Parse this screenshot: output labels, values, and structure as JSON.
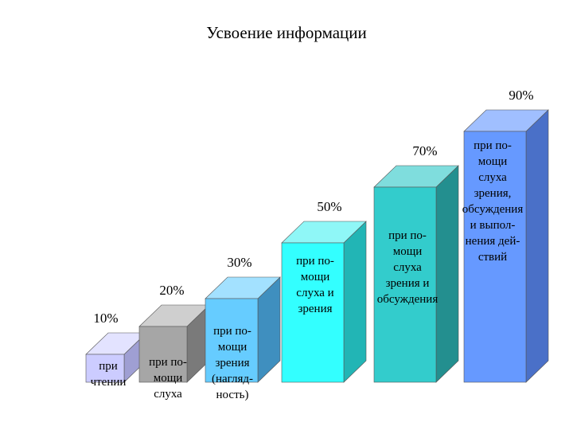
{
  "chart_data": {
    "type": "bar",
    "title": "Усвоение информации",
    "xlabel": "",
    "ylabel": "",
    "ylim": [
      0,
      100
    ],
    "grid": false,
    "legend": "none",
    "style": "3d-columns",
    "categories": [
      "при чтении",
      "при помощи слуха",
      "при помощи зрения (наглядность)",
      "при помощи слуха и зрения",
      "при помощи слуха зрения и обсуждения",
      "при помощи слуха зрения, обсуждения и выполнения действий"
    ],
    "values": [
      10,
      20,
      30,
      50,
      70,
      90
    ],
    "value_labels": [
      "10%",
      "20%",
      "30%",
      "50%",
      "70%",
      "90%"
    ],
    "bar_text_lines": [
      [
        "при",
        "чтении"
      ],
      [
        "при по-",
        "мощи",
        "слуха"
      ],
      [
        "при по-",
        "мощи",
        "зрения",
        "(нагляд-",
        "ность)"
      ],
      [
        "при по-",
        "мощи",
        "слуха и",
        "зрения"
      ],
      [
        "при по-",
        "мощи",
        "слуха",
        "зрения и",
        "обсуждения"
      ],
      [
        "при по-",
        "мощи",
        "слуха",
        "зрения,",
        "обсуждения",
        "и выпол-",
        "нения дей-",
        "ствий"
      ]
    ],
    "colors": {
      "front": [
        "#ccccff",
        "#a6a6a6",
        "#66ccff",
        "#33ffff",
        "#33cccc",
        "#6699ff"
      ],
      "side": [
        "#9f9fd3",
        "#7a7a7a",
        "#3f8fbf",
        "#22b5b5",
        "#238f8f",
        "#4a70c8"
      ],
      "top": [
        "#e3e3ff",
        "#cfcfcf",
        "#a3e1ff",
        "#8ff7f7",
        "#7fdddd",
        "#a0bfff"
      ]
    }
  }
}
